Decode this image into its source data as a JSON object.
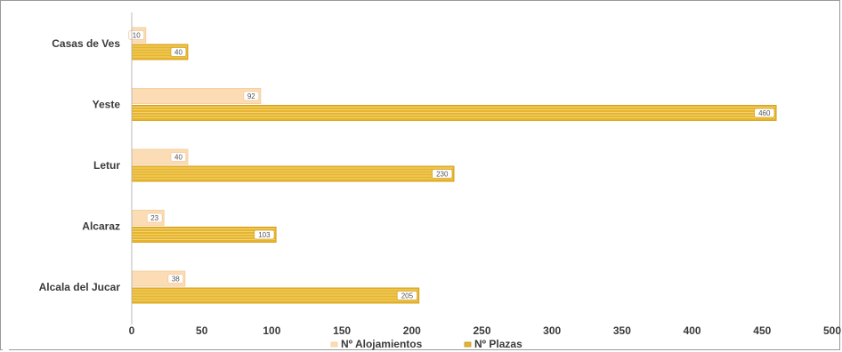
{
  "chart_data": {
    "type": "bar",
    "orientation": "horizontal",
    "categories": [
      "Casas de Ves",
      "Yeste",
      "Letur",
      "Alcaraz",
      "Alcala del Jucar"
    ],
    "series": [
      {
        "name": "Nº Alojamientos",
        "values": [
          10,
          92,
          40,
          23,
          38
        ],
        "color": "#fcdcb4"
      },
      {
        "name": "Nº Plazas",
        "values": [
          40,
          460,
          230,
          103,
          205
        ],
        "color": "#e7b52d"
      }
    ],
    "xlim": [
      0,
      500
    ],
    "xticks": [
      "0",
      "50",
      "100",
      "150",
      "200",
      "250",
      "300",
      "350",
      "400",
      "450",
      "500"
    ],
    "legend_position": "bottom",
    "grid": false
  }
}
